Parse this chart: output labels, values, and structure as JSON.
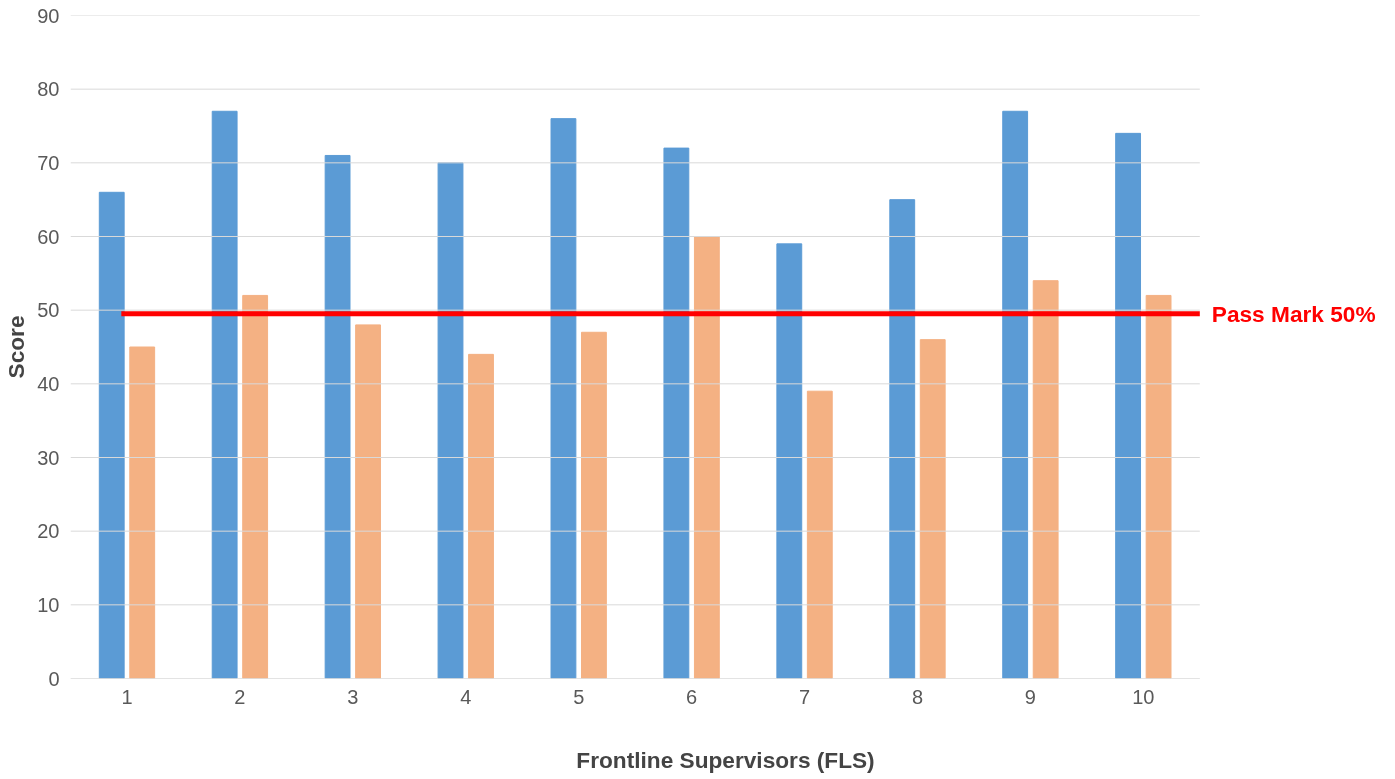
{
  "chart_data": {
    "type": "bar",
    "xlabel": "Frontline Supervisors (FLS)",
    "ylabel": "Score",
    "categories": [
      "1",
      "2",
      "3",
      "4",
      "5",
      "6",
      "7",
      "8",
      "9",
      "10"
    ],
    "series": [
      {
        "color": "#5b9bd5",
        "values": [
          66,
          77,
          71,
          70,
          76,
          72,
          59,
          65,
          77,
          74
        ]
      },
      {
        "color": "#f4b183",
        "values": [
          45,
          52,
          48,
          44,
          47,
          60,
          39,
          46,
          54,
          52
        ]
      }
    ],
    "ylim": [
      0,
      90
    ],
    "yticks": [
      0,
      10,
      20,
      30,
      40,
      50,
      60,
      70,
      80,
      90
    ],
    "grid": "y",
    "ref_lines": [
      {
        "axis": "y",
        "value": 49.5,
        "label": "Pass Mark 50%",
        "color": "#ff0000"
      }
    ]
  }
}
